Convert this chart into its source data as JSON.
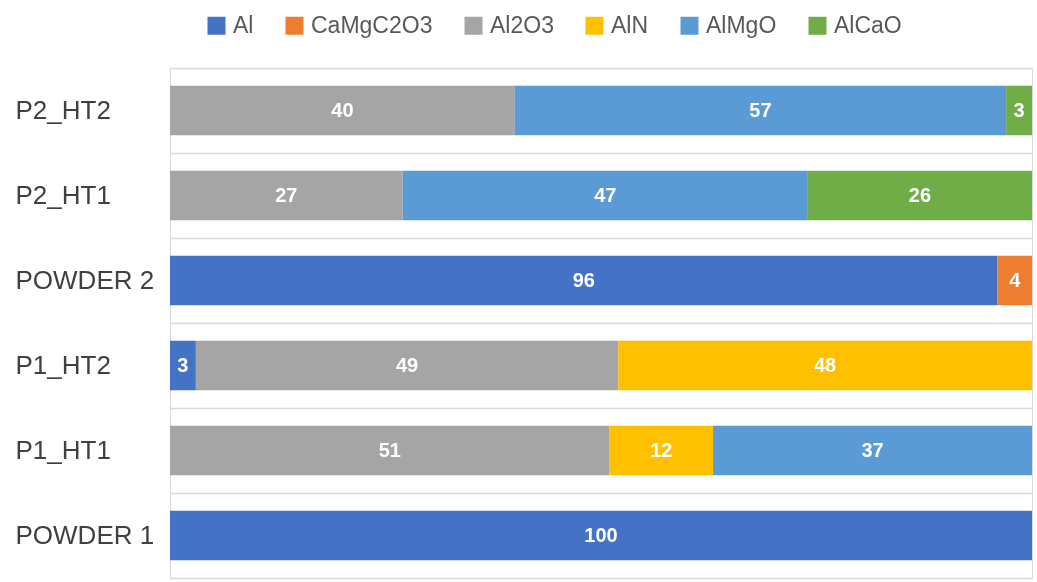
{
  "chart_data": {
    "type": "bar",
    "orientation": "horizontal",
    "stacked": true,
    "categories": [
      "P2_HT2",
      "P2_HT1",
      "POWDER 2",
      "P1_HT2",
      "P1_HT1",
      "POWDER 1"
    ],
    "series": [
      {
        "name": "Al",
        "color": "#4472c4",
        "values": [
          null,
          null,
          96,
          3,
          null,
          100
        ]
      },
      {
        "name": "CaMgC2O3",
        "color": "#ed7d31",
        "values": [
          null,
          null,
          4,
          null,
          null,
          null
        ]
      },
      {
        "name": "Al2O3",
        "color": "#a5a5a5",
        "values": [
          40,
          27,
          null,
          49,
          51,
          null
        ]
      },
      {
        "name": "AlN",
        "color": "#ffc000",
        "values": [
          null,
          null,
          null,
          48,
          12,
          null
        ]
      },
      {
        "name": "AlMgO",
        "color": "#5b9bd5",
        "values": [
          57,
          47,
          null,
          null,
          37,
          null
        ]
      },
      {
        "name": "AlCaO",
        "color": "#70ad47",
        "values": [
          3,
          26,
          null,
          null,
          null,
          null
        ]
      }
    ],
    "data_labels": true,
    "legend": "top",
    "grid": "y"
  }
}
